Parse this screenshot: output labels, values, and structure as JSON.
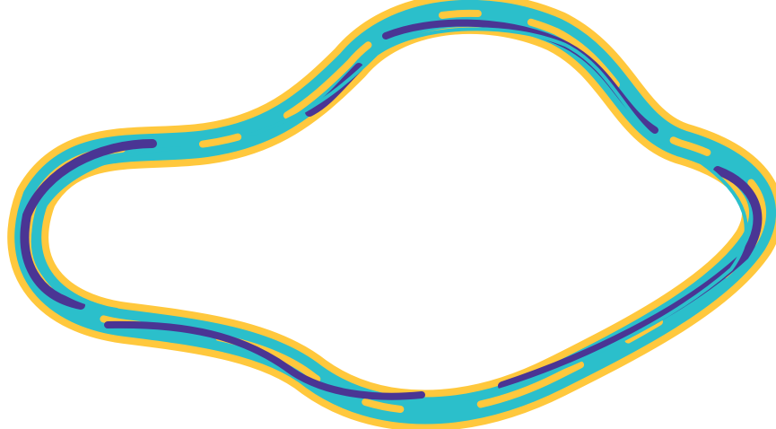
{
  "artwork": {
    "kind": "abstract closed ribbon loop (marbled bands)",
    "colors": {
      "background": "#ffffff",
      "outer_yellow": "#FFC83D",
      "cyan": "#2BBFCB",
      "purple": "#4A3594"
    }
  }
}
